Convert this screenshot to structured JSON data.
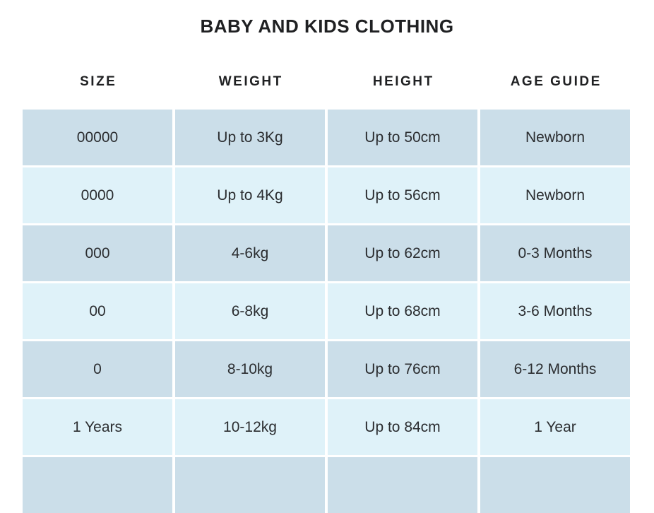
{
  "title": "BABY AND KIDS CLOTHING",
  "table": {
    "columns": [
      "SIZE",
      "WEIGHT",
      "HEIGHT",
      "AGE GUIDE"
    ],
    "rows": [
      [
        "00000",
        "Up to 3Kg",
        "Up to 50cm",
        "Newborn"
      ],
      [
        "0000",
        "Up to 4Kg",
        "Up to 56cm",
        "Newborn"
      ],
      [
        "000",
        "4-6kg",
        "Up to 62cm",
        "0-3 Months"
      ],
      [
        "00",
        "6-8kg",
        "Up to 68cm",
        "3-6 Months"
      ],
      [
        "0",
        "8-10kg",
        "Up to 76cm",
        "6-12 Months"
      ],
      [
        "1 Years",
        "10-12kg",
        "Up to 84cm",
        "1 Year"
      ],
      [
        "",
        "",
        "",
        ""
      ]
    ]
  },
  "colors": {
    "row_dark": "#cbdee9",
    "row_light": "#dff2f9",
    "heading_text": "#1f2022",
    "cell_text": "#2b2d30",
    "page_background": "#ffffff"
  }
}
